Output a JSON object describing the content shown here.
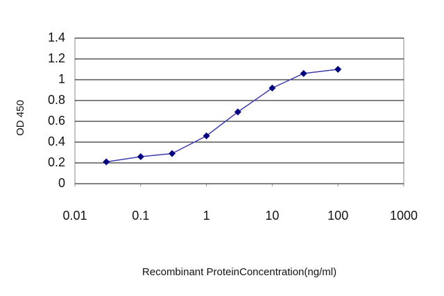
{
  "chart_data": {
    "type": "line",
    "x_label": "Recombinant ProteinConcentration(ng/ml)",
    "y_label": "OD 450",
    "x": [
      0.03,
      0.1,
      0.3,
      1,
      3,
      10,
      30,
      100
    ],
    "series": [
      {
        "color": "#000080",
        "values": [
          0.21,
          0.26,
          0.29,
          0.46,
          0.69,
          0.92,
          1.06,
          1.1
        ]
      }
    ],
    "xscale": "log",
    "xlim": [
      0.01,
      1000
    ],
    "xticks": [
      0.01,
      0.1,
      1,
      10,
      100,
      1000
    ],
    "ylim": [
      0,
      1.4
    ],
    "yticks": [
      0,
      0.2,
      0.4,
      0.6,
      0.8,
      1,
      1.2,
      1.4
    ],
    "grid": true
  }
}
